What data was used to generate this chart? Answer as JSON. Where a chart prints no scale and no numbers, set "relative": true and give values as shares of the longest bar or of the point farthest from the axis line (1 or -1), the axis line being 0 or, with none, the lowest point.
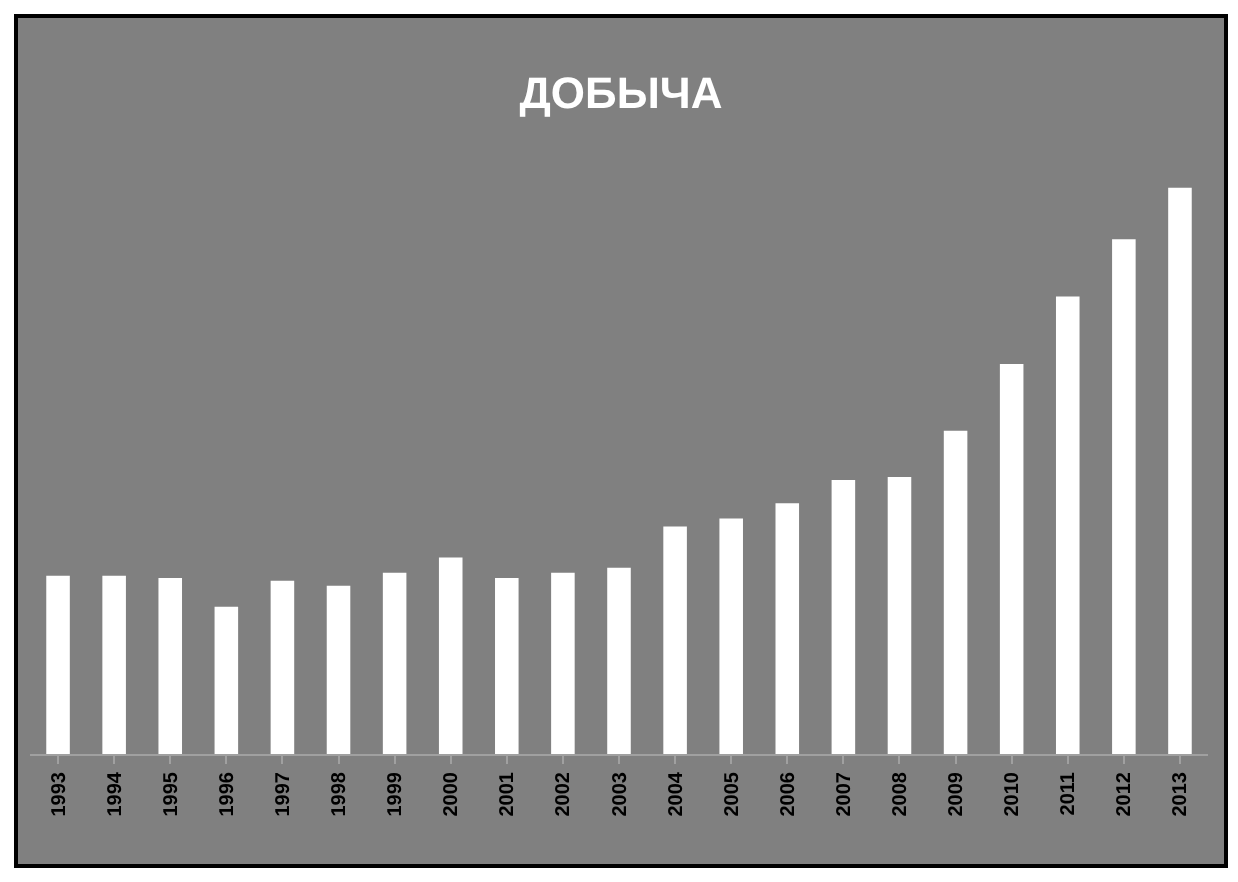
{
  "chart_data": {
    "type": "bar",
    "title": "ДОБЫЧА",
    "relative": true,
    "color": "#ffffff",
    "grid": false,
    "legend": false,
    "categories": [
      "1993",
      "1994",
      "1995",
      "1996",
      "1997",
      "1998",
      "1999",
      "2000",
      "2001",
      "2002",
      "2003",
      "2004",
      "2005",
      "2006",
      "2007",
      "2008",
      "2009",
      "2010",
      "2011",
      "2012",
      "2013"
    ],
    "values": [
      0.315,
      0.315,
      0.311,
      0.26,
      0.306,
      0.297,
      0.32,
      0.347,
      0.311,
      0.32,
      0.329,
      0.402,
      0.416,
      0.443,
      0.484,
      0.489,
      0.571,
      0.689,
      0.808,
      0.909,
      1
    ]
  }
}
